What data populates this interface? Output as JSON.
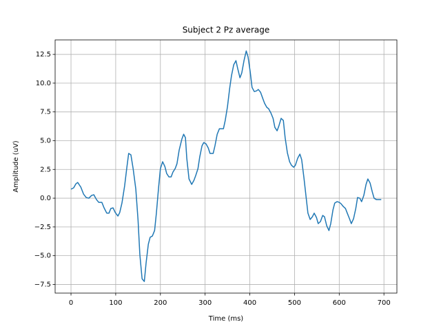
{
  "chart_data": {
    "type": "line",
    "title": "Subject 2 Pz average",
    "x_label": "Time (ms)",
    "y_label": "Amplitude (uV)",
    "x": [
      0,
      6,
      11,
      15,
      22,
      28,
      34,
      40,
      46,
      51,
      57,
      62,
      69,
      74,
      80,
      85,
      89,
      94,
      99,
      105,
      109,
      114,
      120,
      125,
      129,
      134,
      139,
      145,
      150,
      154,
      159,
      164,
      168,
      173,
      177,
      182,
      187,
      191,
      196,
      200,
      205,
      210,
      214,
      219,
      224,
      228,
      233,
      237,
      242,
      248,
      252,
      256,
      259,
      264,
      270,
      275,
      279,
      284,
      288,
      293,
      297,
      302,
      307,
      311,
      318,
      322,
      327,
      332,
      336,
      341,
      345,
      350,
      355,
      359,
      364,
      369,
      373,
      378,
      382,
      387,
      392,
      396,
      401,
      405,
      410,
      415,
      419,
      424,
      429,
      433,
      438,
      442,
      447,
      452,
      456,
      461,
      465,
      470,
      475,
      479,
      484,
      489,
      493,
      498,
      502,
      507,
      512,
      516,
      521,
      526,
      530,
      535,
      540,
      544,
      549,
      553,
      558,
      563,
      567,
      572,
      577,
      581,
      586,
      590,
      595,
      600,
      604,
      609,
      614,
      618,
      623,
      627,
      632,
      637,
      641,
      646,
      650,
      655,
      660,
      664,
      669,
      674,
      678,
      683,
      689,
      694
    ],
    "values": [
      0.78,
      0.9,
      1.25,
      1.37,
      0.96,
      0.36,
      0.06,
      0,
      0.24,
      0.3,
      -0.12,
      -0.36,
      -0.36,
      -0.84,
      -1.3,
      -1.3,
      -0.9,
      -0.84,
      -1.25,
      -1.55,
      -1.25,
      -0.42,
      1.08,
      2.69,
      3.89,
      3.77,
      2.57,
      0.78,
      -1.91,
      -4.9,
      -7.0,
      -7.24,
      -5.62,
      -4.0,
      -3.4,
      -3.29,
      -2.81,
      -1.3,
      0.96,
      2.57,
      3.17,
      2.75,
      2.15,
      1.85,
      1.85,
      2.27,
      2.57,
      2.99,
      4.19,
      5.14,
      5.56,
      5.26,
      3.47,
      1.67,
      1.2,
      1.55,
      1.97,
      2.57,
      3.59,
      4.55,
      4.84,
      4.72,
      4.37,
      3.89,
      3.89,
      4.55,
      5.56,
      6.04,
      6.04,
      6.04,
      6.76,
      7.95,
      9.57,
      10.65,
      11.6,
      11.96,
      11.25,
      10.47,
      10.89,
      11.96,
      12.8,
      12.3,
      10.95,
      9.63,
      9.27,
      9.33,
      9.45,
      9.21,
      8.67,
      8.25,
      7.9,
      7.78,
      7.42,
      6.94,
      6.16,
      5.86,
      6.28,
      6.94,
      6.76,
      5.26,
      3.95,
      3.17,
      2.87,
      2.69,
      2.87,
      3.47,
      3.83,
      3.35,
      1.79,
      0.06,
      -1.3,
      -1.85,
      -1.61,
      -1.3,
      -1.67,
      -2.21,
      -2.03,
      -1.5,
      -1.61,
      -2.39,
      -2.81,
      -2.21,
      -1.02,
      -0.42,
      -0.3,
      -0.36,
      -0.48,
      -0.72,
      -0.9,
      -1.3,
      -1.79,
      -2.21,
      -1.79,
      -0.9,
      0.06,
      0,
      -0.3,
      0.24,
      1.2,
      1.67,
      1.32,
      0.54,
      0,
      -0.12,
      -0.12,
      -0.12
    ],
    "color": "#1f77b4",
    "xlim": [
      -35.5,
      729
    ],
    "ylim": [
      -8.25,
      13.76
    ],
    "xticks": [
      0,
      100,
      200,
      300,
      400,
      500,
      600,
      700
    ],
    "yticks": [
      {
        "value": -7.5,
        "label": "−7.5"
      },
      {
        "value": -5,
        "label": "−5.0"
      },
      {
        "value": -2.5,
        "label": "−2.5"
      },
      {
        "value": 0,
        "label": "0.0"
      },
      {
        "value": 2.5,
        "label": "2.5"
      },
      {
        "value": 5,
        "label": "5.0"
      },
      {
        "value": 7.5,
        "label": "7.5"
      },
      {
        "value": 10,
        "label": "10.0"
      },
      {
        "value": 12.5,
        "label": "12.5"
      }
    ],
    "grid": true
  }
}
